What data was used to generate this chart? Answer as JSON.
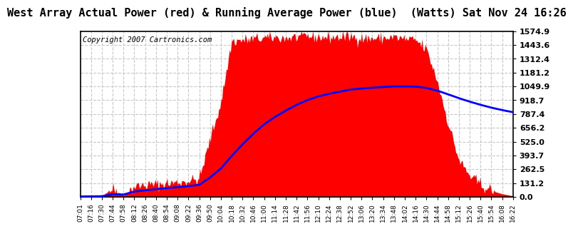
{
  "title": "West Array Actual Power (red) & Running Average Power (blue)  (Watts) Sat Nov 24 16:26",
  "copyright": "Copyright 2007 Cartronics.com",
  "bg_color": "#ffffff",
  "plot_bg_color": "#ffffff",
  "fill_color": "#ff0000",
  "line_color": "#0000ff",
  "grid_color": "#c8c8c8",
  "yticks": [
    0.0,
    131.2,
    262.5,
    393.7,
    525.0,
    656.2,
    787.4,
    918.7,
    1049.9,
    1181.2,
    1312.4,
    1443.6,
    1574.9
  ],
  "ytick_labels": [
    "0.0",
    "131.2",
    "262.5",
    "393.7",
    "525.0",
    "656.2",
    "787.4",
    "918.7",
    "1049.9",
    "1181.2",
    "1312.4",
    "1443.6",
    "1574.9"
  ],
  "xtick_labels": [
    "07:01",
    "07:16",
    "07:30",
    "07:44",
    "07:58",
    "08:12",
    "08:26",
    "08:40",
    "08:54",
    "09:08",
    "09:22",
    "09:36",
    "09:50",
    "10:04",
    "10:18",
    "10:32",
    "10:46",
    "11:00",
    "11:14",
    "11:28",
    "11:42",
    "11:56",
    "12:10",
    "12:24",
    "12:38",
    "12:52",
    "13:06",
    "13:20",
    "13:34",
    "13:48",
    "14:02",
    "14:16",
    "14:30",
    "14:44",
    "14:58",
    "15:12",
    "15:26",
    "15:40",
    "15:54",
    "16:08",
    "16:22"
  ],
  "ylim": [
    0,
    1574.9
  ],
  "title_fontsize": 11,
  "copyright_fontsize": 7.5,
  "actual_power": [
    5,
    8,
    10,
    80,
    12,
    100,
    115,
    120,
    130,
    140,
    155,
    170,
    550,
    900,
    1480,
    1490,
    1500,
    1510,
    1515,
    1510,
    1520,
    1530,
    1520,
    1515,
    1520,
    1525,
    1510,
    1505,
    1510,
    1520,
    1500,
    1490,
    1400,
    1100,
    700,
    350,
    200,
    120,
    60,
    30,
    10
  ],
  "avg_power": [
    5,
    6,
    7,
    26,
    23,
    51,
    63,
    74,
    84,
    93,
    103,
    115,
    185,
    270,
    390,
    500,
    600,
    690,
    760,
    820,
    875,
    920,
    955,
    980,
    1000,
    1020,
    1030,
    1038,
    1044,
    1050,
    1050,
    1048,
    1035,
    1010,
    975,
    938,
    905,
    875,
    848,
    825,
    805
  ]
}
